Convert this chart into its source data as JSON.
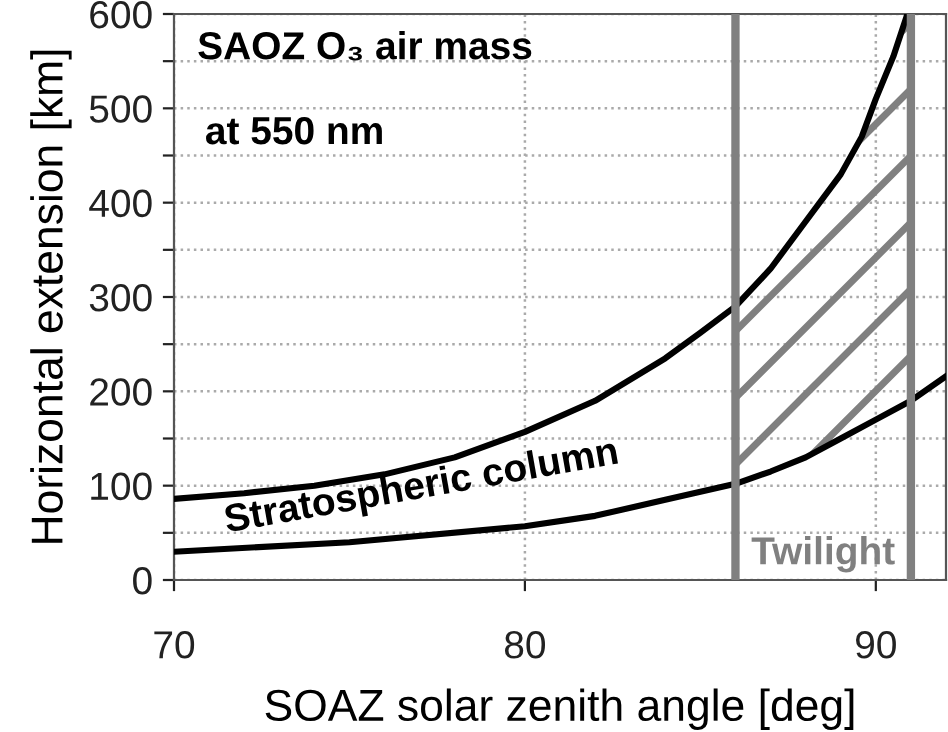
{
  "chart_data": {
    "type": "line",
    "xlabel": "SOAZ solar zenith angle [deg]",
    "ylabel": "Horizontal extension [km]",
    "xlim": [
      70,
      92
    ],
    "xticks": [
      70,
      80,
      90
    ],
    "ylim": [
      0,
      600
    ],
    "yticks": [
      0,
      {
        "value": 50,
        "label": null
      },
      100,
      {
        "value": 150,
        "label": null
      },
      200,
      {
        "value": 250,
        "label": null
      },
      300,
      {
        "value": 350,
        "label": null
      },
      400,
      {
        "value": 450,
        "label": null
      },
      500,
      {
        "value": 550,
        "label": null
      },
      600
    ],
    "grid": true,
    "line_style": "solid",
    "marker": "none",
    "series": [
      {
        "color": "#000000",
        "x": [
          70,
          72,
          74,
          76,
          78,
          80,
          82,
          84,
          85,
          86,
          87,
          88,
          89,
          89.6,
          90,
          90.5,
          90.9
        ],
        "values": [
          86,
          92,
          100,
          112,
          130,
          157,
          190,
          235,
          262,
          290,
          330,
          380,
          430,
          470,
          510,
          555,
          600
        ]
      },
      {
        "color": "#000000",
        "x": [
          70,
          75,
          80,
          82,
          84,
          86,
          87,
          88,
          89,
          90,
          91,
          92
        ],
        "values": [
          30,
          40,
          57,
          68,
          85,
          102,
          115,
          130,
          150,
          170,
          190,
          216
        ]
      }
    ],
    "ref_lines": [
      {
        "axis": "x",
        "value": 86,
        "color": "#808080"
      },
      {
        "axis": "x",
        "value": 91,
        "color": "#808080"
      }
    ],
    "bands": [
      {
        "axis": "x",
        "from": 86,
        "to": 91,
        "label": "Twilight",
        "color": "#808080"
      }
    ],
    "annotations": [
      "SAOZ O₃ air mass",
      "at 550 nm",
      "Stratospheric column"
    ]
  }
}
